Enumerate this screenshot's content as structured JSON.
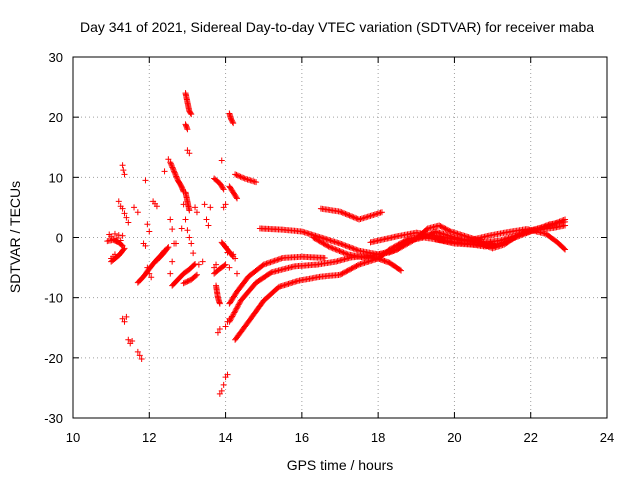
{
  "chart_data": {
    "type": "scatter",
    "title": "Day 341 of 2021, Sidereal Day-to-day VTEC variation (SDTVAR) for receiver maba",
    "xlabel": "GPS time / hours",
    "ylabel": "SDTVAR / TECUs",
    "xlim": [
      10,
      24
    ],
    "ylim": [
      -30,
      30
    ],
    "xticks": [
      10,
      12,
      14,
      16,
      18,
      20,
      22,
      24
    ],
    "yticks": [
      -30,
      -20,
      -10,
      0,
      10,
      20,
      30
    ],
    "grid": true,
    "marker": "+",
    "color": "#ff0000",
    "series": [
      {
        "name": "isolated-points",
        "points": [
          [
            11.0,
            -3.5
          ],
          [
            11.05,
            -3.2
          ],
          [
            11.1,
            -2.8
          ],
          [
            10.95,
            0.5
          ],
          [
            11.0,
            0.2
          ],
          [
            11.05,
            -0.3
          ],
          [
            11.1,
            0.6
          ],
          [
            11.15,
            -0.1
          ],
          [
            11.2,
            0.4
          ],
          [
            11.25,
            -0.5
          ],
          [
            11.3,
            0.3
          ],
          [
            11.3,
            12.0
          ],
          [
            11.32,
            11.2
          ],
          [
            11.35,
            10.5
          ],
          [
            11.2,
            6.0
          ],
          [
            11.25,
            5.2
          ],
          [
            11.3,
            4.8
          ],
          [
            11.35,
            4.0
          ],
          [
            11.4,
            3.3
          ],
          [
            11.45,
            2.5
          ],
          [
            11.3,
            -13.5
          ],
          [
            11.35,
            -14.0
          ],
          [
            11.4,
            -13.2
          ],
          [
            11.45,
            -17.0
          ],
          [
            11.5,
            -17.6
          ],
          [
            11.55,
            -17.2
          ],
          [
            11.7,
            -19.0
          ],
          [
            11.75,
            -19.6
          ],
          [
            11.8,
            -20.2
          ],
          [
            11.6,
            5.0
          ],
          [
            11.7,
            4.2
          ],
          [
            11.9,
            9.5
          ],
          [
            11.95,
            2.2
          ],
          [
            12.0,
            1.0
          ],
          [
            11.85,
            -1.0
          ],
          [
            11.9,
            -1.4
          ],
          [
            11.95,
            -5.0
          ],
          [
            12.0,
            -6.0
          ],
          [
            12.05,
            -6.6
          ],
          [
            12.1,
            6.0
          ],
          [
            12.15,
            5.6
          ],
          [
            12.2,
            5.2
          ],
          [
            12.4,
            11.0
          ],
          [
            12.5,
            13.0
          ],
          [
            12.55,
            3.0
          ],
          [
            12.6,
            1.4
          ],
          [
            12.65,
            -1.0
          ],
          [
            12.55,
            -6.0
          ],
          [
            12.6,
            -4.0
          ],
          [
            12.7,
            -1.0
          ],
          [
            12.85,
            1.5
          ],
          [
            12.9,
            5.5
          ],
          [
            12.95,
            3.0
          ],
          [
            13.0,
            1.2
          ],
          [
            13.05,
            0.0
          ],
          [
            13.1,
            -1.0
          ],
          [
            13.15,
            -2.6
          ],
          [
            13.0,
            14.5
          ],
          [
            13.05,
            14.0
          ],
          [
            13.2,
            5.0
          ],
          [
            13.25,
            4.2
          ],
          [
            13.3,
            -4.5
          ],
          [
            13.4,
            -4.0
          ],
          [
            13.45,
            5.5
          ],
          [
            13.5,
            3.0
          ],
          [
            13.55,
            2.0
          ],
          [
            13.6,
            5.0
          ],
          [
            13.7,
            -5.0
          ],
          [
            13.75,
            -4.5
          ],
          [
            13.9,
            12.8
          ],
          [
            13.95,
            5.0
          ],
          [
            14.0,
            5.5
          ],
          [
            14.0,
            -1.5
          ],
          [
            14.05,
            -2.5
          ],
          [
            14.1,
            -5.0
          ],
          [
            13.85,
            -26.0
          ],
          [
            13.9,
            -25.5
          ],
          [
            13.95,
            -24.5
          ],
          [
            14.0,
            -23.2
          ],
          [
            14.05,
            -22.8
          ],
          [
            13.8,
            -15.8
          ],
          [
            13.85,
            -15.2
          ],
          [
            14.0,
            -14.8
          ],
          [
            14.05,
            -14.0
          ],
          [
            14.1,
            -13.5
          ],
          [
            14.2,
            -2.8
          ],
          [
            14.25,
            -3.5
          ],
          [
            14.3,
            -6.0
          ]
        ]
      },
      {
        "name": "track-a",
        "points": [
          [
            10.9,
            -0.6
          ],
          [
            11.05,
            -0.4
          ],
          [
            11.2,
            -0.8
          ],
          [
            11.3,
            -1.4
          ]
        ]
      },
      {
        "name": "track-b",
        "points": [
          [
            11.0,
            -4.0
          ],
          [
            11.2,
            -3.0
          ],
          [
            11.35,
            -1.8
          ]
        ]
      },
      {
        "name": "track-c",
        "points": [
          [
            11.7,
            -7.5
          ],
          [
            11.85,
            -6.5
          ],
          [
            12.0,
            -5.2
          ],
          [
            12.15,
            -4.0
          ],
          [
            12.3,
            -3.0
          ],
          [
            12.4,
            -2.2
          ]
        ]
      },
      {
        "name": "track-d",
        "points": [
          [
            12.2,
            -3.8
          ],
          [
            12.35,
            -2.8
          ],
          [
            12.5,
            -1.6
          ]
        ]
      },
      {
        "name": "track-e",
        "points": [
          [
            12.6,
            -8.0
          ],
          [
            12.75,
            -7.0
          ],
          [
            12.9,
            -6.0
          ],
          [
            13.05,
            -5.3
          ],
          [
            13.2,
            -4.4
          ]
        ]
      },
      {
        "name": "track-f",
        "points": [
          [
            12.9,
            -7.6
          ],
          [
            13.1,
            -7.0
          ],
          [
            13.25,
            -6.2
          ]
        ]
      },
      {
        "name": "track-g",
        "points": [
          [
            12.55,
            12.5
          ],
          [
            12.65,
            11.0
          ],
          [
            12.75,
            9.5
          ],
          [
            12.85,
            8.4
          ],
          [
            12.9,
            7.6
          ]
        ]
      },
      {
        "name": "track-h",
        "points": [
          [
            12.95,
            24.0
          ],
          [
            13.0,
            22.5
          ],
          [
            13.05,
            21.0
          ],
          [
            13.1,
            20.5
          ]
        ]
      },
      {
        "name": "track-i",
        "points": [
          [
            12.95,
            18.8
          ],
          [
            13.0,
            18.0
          ]
        ]
      },
      {
        "name": "track-j",
        "points": [
          [
            12.95,
            7.5
          ],
          [
            13.0,
            6.0
          ],
          [
            13.05,
            4.5
          ]
        ]
      },
      {
        "name": "track-k",
        "points": [
          [
            13.7,
            9.8
          ],
          [
            13.85,
            9.0
          ],
          [
            13.95,
            8.0
          ]
        ]
      },
      {
        "name": "track-l",
        "points": [
          [
            13.9,
            -0.8
          ],
          [
            14.05,
            -2.0
          ],
          [
            14.2,
            -3.2
          ]
        ]
      },
      {
        "name": "track-m",
        "points": [
          [
            13.7,
            -6.0
          ],
          [
            13.85,
            -5.2
          ],
          [
            14.0,
            -4.5
          ]
        ]
      },
      {
        "name": "track-n",
        "points": [
          [
            13.75,
            -8.0
          ],
          [
            13.8,
            -10.0
          ],
          [
            13.85,
            -11.0
          ]
        ]
      },
      {
        "name": "track-o",
        "points": [
          [
            14.1,
            20.6
          ],
          [
            14.15,
            19.6
          ],
          [
            14.2,
            19.0
          ]
        ]
      },
      {
        "name": "track-p",
        "points": [
          [
            14.1,
            8.5
          ],
          [
            14.2,
            7.5
          ],
          [
            14.3,
            6.5
          ]
        ]
      },
      {
        "name": "track-q",
        "points": [
          [
            14.25,
            10.5
          ],
          [
            14.5,
            9.8
          ],
          [
            14.8,
            9.2
          ]
        ]
      },
      {
        "name": "track-r",
        "points": [
          [
            14.1,
            -11.0
          ],
          [
            14.3,
            -9.0
          ],
          [
            14.6,
            -6.5
          ],
          [
            15.0,
            -4.5
          ],
          [
            15.5,
            -3.4
          ],
          [
            16.0,
            -3.2
          ],
          [
            16.6,
            -3.4
          ]
        ]
      },
      {
        "name": "track-s",
        "points": [
          [
            14.1,
            -14.0
          ],
          [
            14.4,
            -10.5
          ],
          [
            14.8,
            -7.5
          ],
          [
            15.2,
            -5.8
          ],
          [
            15.8,
            -4.8
          ],
          [
            16.4,
            -4.5
          ],
          [
            16.9,
            -4.0
          ],
          [
            17.3,
            -3.3
          ],
          [
            17.8,
            -3.0
          ],
          [
            18.3,
            -2.5
          ],
          [
            18.5,
            -2.0
          ],
          [
            18.8,
            -0.5
          ],
          [
            19.2,
            0.0
          ],
          [
            19.7,
            -0.5
          ],
          [
            20.3,
            -1.0
          ],
          [
            20.8,
            -1.5
          ],
          [
            21.2,
            -1.0
          ],
          [
            21.6,
            0.0
          ],
          [
            22.0,
            1.0
          ],
          [
            22.5,
            2.2
          ],
          [
            22.9,
            2.6
          ]
        ]
      },
      {
        "name": "track-t",
        "points": [
          [
            14.25,
            -17.0
          ],
          [
            14.6,
            -14.0
          ],
          [
            15.0,
            -10.5
          ],
          [
            15.4,
            -8.2
          ],
          [
            15.9,
            -7.2
          ],
          [
            16.5,
            -6.5
          ],
          [
            17.0,
            -6.2
          ],
          [
            17.5,
            -4.5
          ],
          [
            18.0,
            -3.5
          ],
          [
            18.3,
            -2.0
          ],
          [
            18.8,
            -0.2
          ],
          [
            19.3,
            0.3
          ],
          [
            19.5,
            1.0
          ],
          [
            20.0,
            0.0
          ],
          [
            20.6,
            -0.8
          ],
          [
            21.0,
            -1.8
          ],
          [
            21.3,
            -1.2
          ],
          [
            21.7,
            0.5
          ],
          [
            22.1,
            1.2
          ],
          [
            22.6,
            1.6
          ],
          [
            22.9,
            2.0
          ]
        ]
      },
      {
        "name": "track-u",
        "points": [
          [
            14.9,
            1.5
          ],
          [
            15.5,
            1.3
          ],
          [
            16.0,
            1.0
          ],
          [
            16.5,
            0.0
          ],
          [
            17.0,
            -1.0
          ],
          [
            17.5,
            -2.2
          ],
          [
            18.0,
            -2.8
          ],
          [
            18.5,
            -2.0
          ],
          [
            19.0,
            -0.2
          ],
          [
            19.3,
            1.5
          ],
          [
            19.6,
            2.0
          ],
          [
            19.9,
            1.0
          ],
          [
            20.3,
            0.2
          ],
          [
            20.8,
            -0.8
          ],
          [
            21.2,
            -0.5
          ],
          [
            21.6,
            0.3
          ],
          [
            22.0,
            1.2
          ],
          [
            22.5,
            2.0
          ],
          [
            22.9,
            3.0
          ]
        ]
      },
      {
        "name": "track-v",
        "points": [
          [
            16.3,
            0.0
          ],
          [
            16.7,
            -1.5
          ],
          [
            17.2,
            -2.8
          ],
          [
            17.6,
            -3.3
          ],
          [
            18.0,
            -3.5
          ],
          [
            18.3,
            -4.2
          ],
          [
            18.6,
            -5.5
          ]
        ]
      },
      {
        "name": "track-w",
        "points": [
          [
            16.5,
            4.8
          ],
          [
            17.0,
            4.3
          ],
          [
            17.5,
            3.0
          ],
          [
            17.8,
            3.6
          ],
          [
            18.1,
            4.2
          ]
        ]
      },
      {
        "name": "track-x",
        "points": [
          [
            17.8,
            -0.8
          ],
          [
            18.5,
            0.2
          ],
          [
            19.0,
            0.8
          ],
          [
            19.6,
            0.2
          ],
          [
            20.3,
            -0.6
          ],
          [
            20.9,
            0.3
          ],
          [
            21.4,
            0.9
          ],
          [
            21.9,
            1.4
          ],
          [
            22.4,
            0.6
          ],
          [
            22.7,
            -0.8
          ],
          [
            22.9,
            -2.0
          ]
        ]
      },
      {
        "name": "track-y",
        "points": [
          [
            19.5,
            -0.3
          ],
          [
            20.0,
            -1.0
          ],
          [
            20.5,
            -1.2
          ],
          [
            21.0,
            -1.0
          ]
        ]
      }
    ]
  }
}
